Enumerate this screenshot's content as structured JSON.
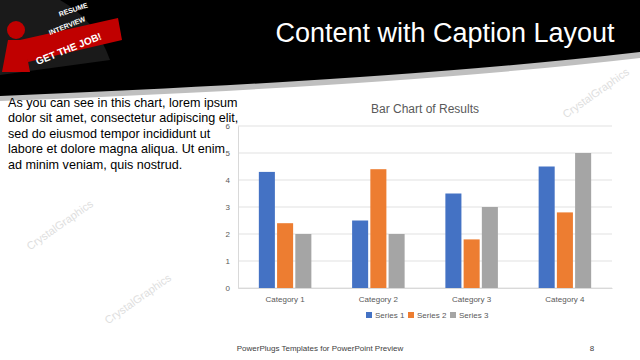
{
  "slide": {
    "title": "Content with Caption Layout",
    "caption": "As you can see in this chart, lorem ipsum dolor sit amet, consectetur adipiscing elit, sed do eiusmod tempor incididunt ut labore et dolore magna aliqua. Ut enim ad minim veniam, quis nostrud.",
    "footer": "PowerPlugs Templates for PowerPoint Preview",
    "page_number": 8,
    "watermark": "CrystalGraphics",
    "logo_texts": [
      "RESUME",
      "INTERVIEW",
      "GET THE JOB!"
    ]
  },
  "chart_data": {
    "type": "bar",
    "title": "Bar Chart of Results",
    "categories": [
      "Category 1",
      "Category 2",
      "Category 3",
      "Category 4"
    ],
    "series": [
      {
        "name": "Series 1",
        "color": "#4472c4",
        "values": [
          4.3,
          2.5,
          3.5,
          4.5
        ]
      },
      {
        "name": "Series 2",
        "color": "#ed7d31",
        "values": [
          2.4,
          4.4,
          1.8,
          2.8
        ]
      },
      {
        "name": "Series 3",
        "color": "#a5a5a5",
        "values": [
          2,
          2,
          3,
          5
        ]
      }
    ],
    "ylim": [
      0,
      6
    ],
    "yticks": [
      0,
      1,
      2,
      3,
      4,
      5,
      6
    ],
    "grid": true,
    "legend": "bottom"
  }
}
